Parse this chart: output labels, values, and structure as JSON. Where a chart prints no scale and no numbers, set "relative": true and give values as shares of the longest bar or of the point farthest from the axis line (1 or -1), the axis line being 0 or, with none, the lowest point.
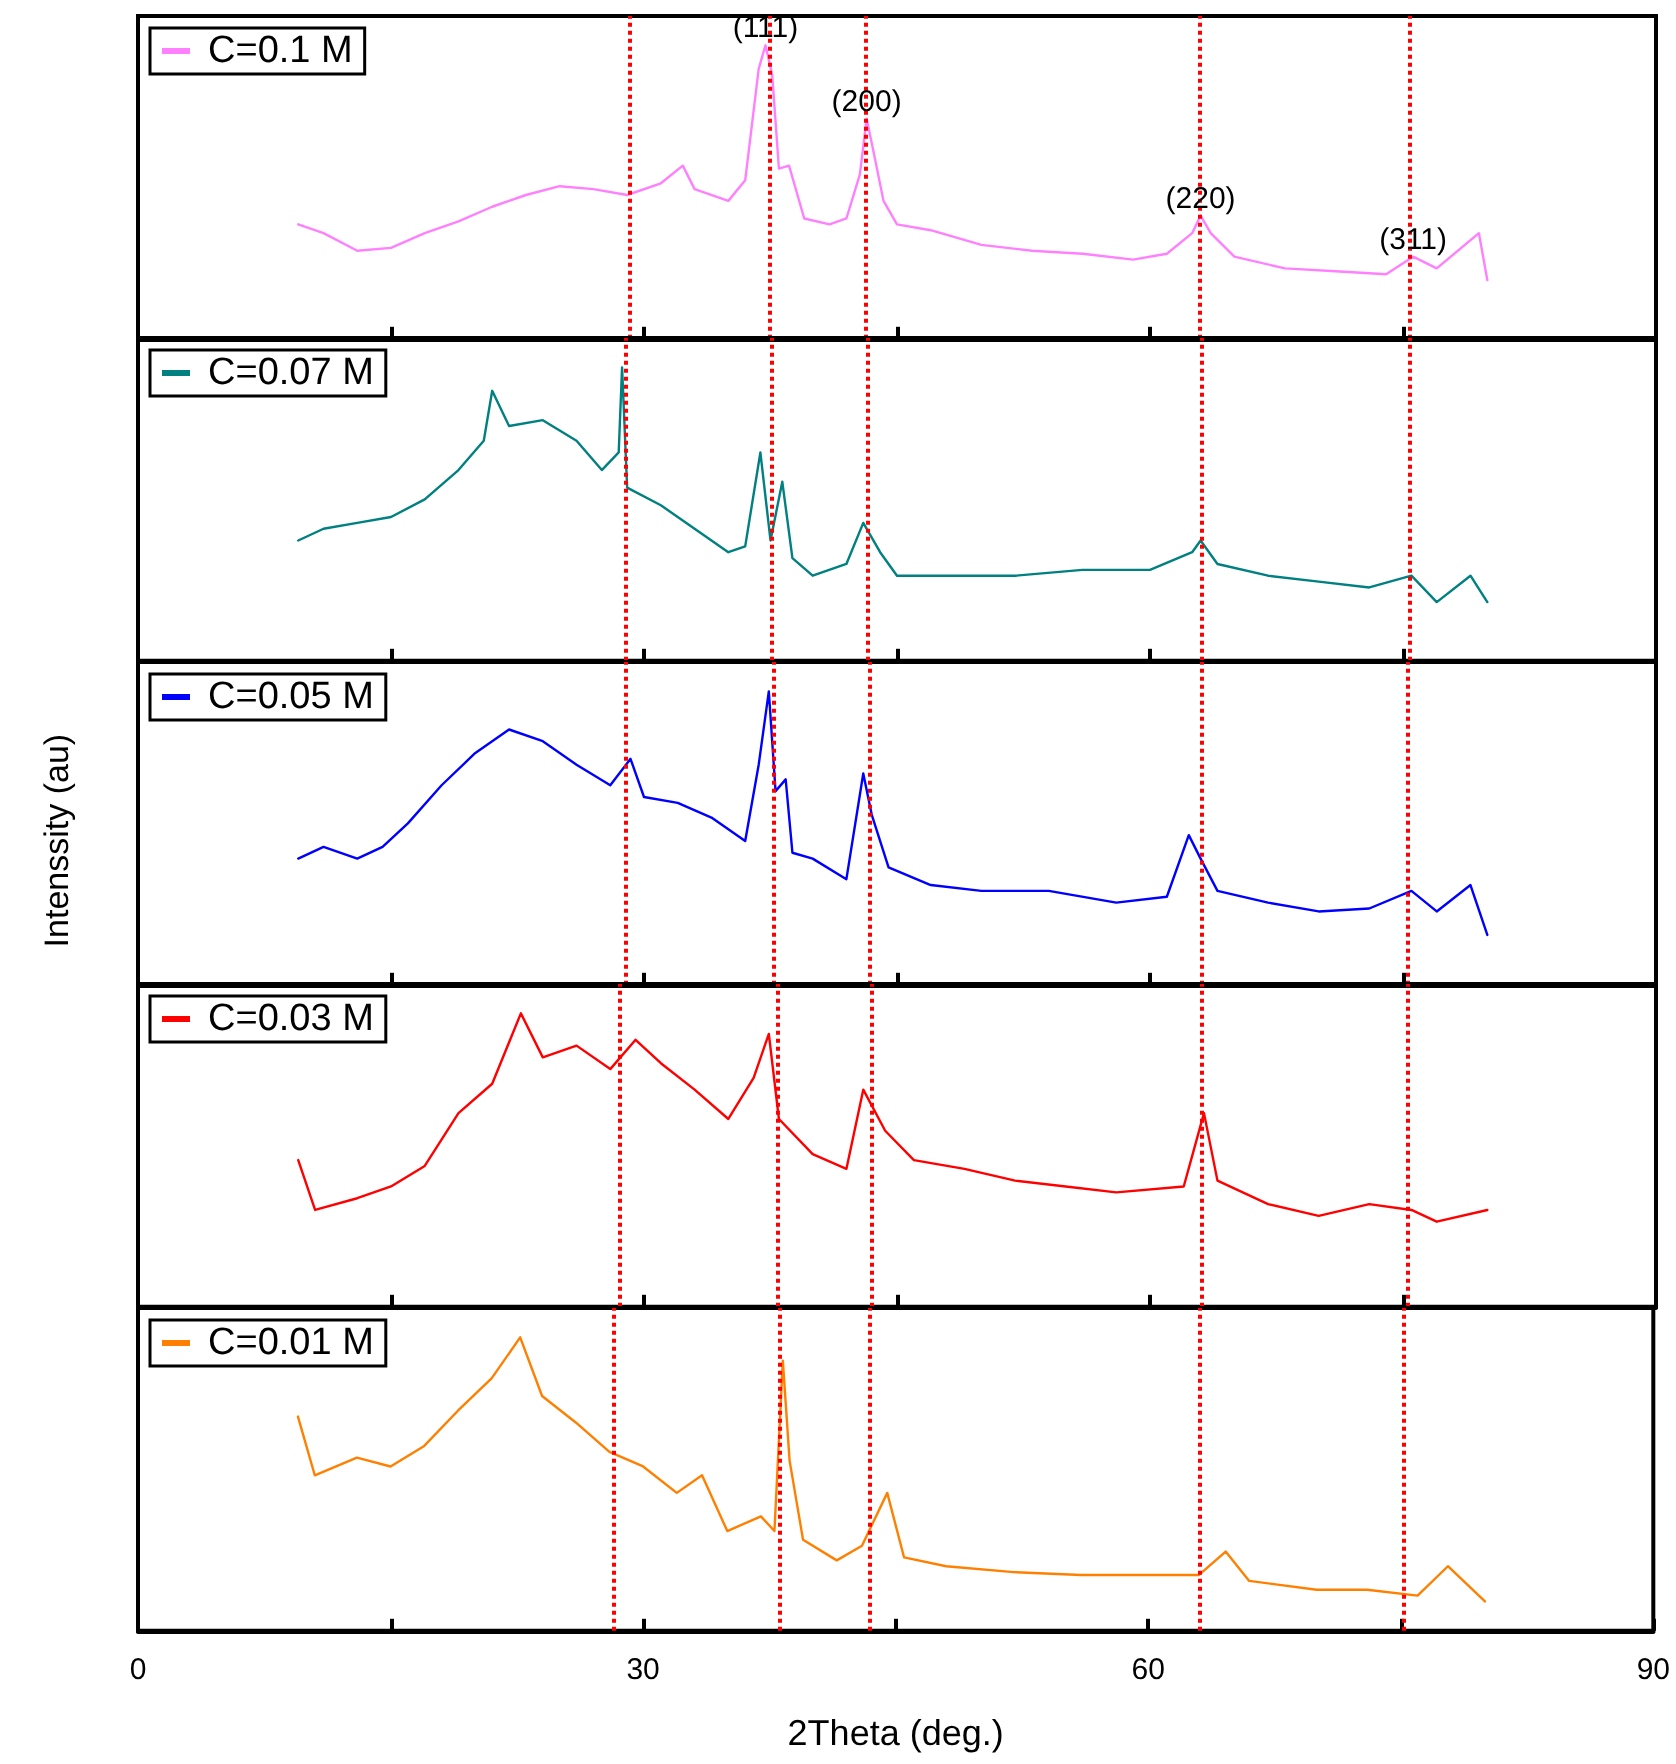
{
  "chart_data": [
    {
      "type": "line",
      "relative": true,
      "xlim": [
        0,
        90
      ],
      "xticks": [
        0,
        {
          "value": 15,
          "label": null
        },
        30,
        {
          "value": 45,
          "label": null
        },
        60,
        {
          "value": 75,
          "label": null
        },
        90
      ],
      "tick_labels": false,
      "legend": "top left",
      "grid": false,
      "marker": "none",
      "line_style": "solid",
      "x": [
        9.5,
        11,
        13,
        15,
        17,
        19,
        21,
        23,
        25,
        27,
        29,
        31,
        32.3,
        33,
        35,
        36,
        36.8,
        37.2,
        37.6,
        38,
        38.6,
        39.5,
        41,
        42,
        42.8,
        43.2,
        43.6,
        44.2,
        45,
        47,
        50,
        53,
        56,
        59,
        61,
        62.5,
        63,
        63.6,
        65,
        68,
        71,
        74,
        75.6,
        77,
        79.5,
        80
      ],
      "series": [
        {
          "name": "C=0.1 M",
          "color": "#ff80ff",
          "values": [
            0.39,
            0.36,
            0.3,
            0.31,
            0.36,
            0.4,
            0.45,
            0.49,
            0.52,
            0.51,
            0.49,
            0.53,
            0.59,
            0.51,
            0.47,
            0.54,
            0.92,
            1.0,
            0.9,
            0.58,
            0.59,
            0.41,
            0.39,
            0.41,
            0.56,
            0.75,
            0.64,
            0.47,
            0.39,
            0.37,
            0.32,
            0.3,
            0.29,
            0.27,
            0.29,
            0.36,
            0.42,
            0.36,
            0.28,
            0.24,
            0.23,
            0.22,
            0.28,
            0.24,
            0.36,
            0.2
          ]
        }
      ],
      "annotations": [
        {
          "text": "(111)",
          "x": 37.2,
          "y": 1.0
        },
        {
          "text": "(200)",
          "x": 43.2,
          "y": 0.75
        },
        {
          "text": "(220)",
          "x": 63,
          "y": 0.42
        },
        {
          "text": "(311)",
          "x": 75.6,
          "y": 0.28
        }
      ],
      "ref_lines": [
        {
          "axis": "x",
          "value": 29.1,
          "color": "#ff0000",
          "line_style": "dotted"
        },
        {
          "axis": "x",
          "value": 37.4,
          "color": "#ff0000",
          "line_style": "dotted"
        },
        {
          "axis": "x",
          "value": 43.1,
          "color": "#ff0000",
          "line_style": "dotted"
        },
        {
          "axis": "x",
          "value": 62.9,
          "color": "#ff0000",
          "line_style": "dotted"
        },
        {
          "axis": "x",
          "value": 75.4,
          "color": "#ff0000",
          "line_style": "dotted"
        }
      ]
    },
    {
      "type": "line",
      "relative": true,
      "xlim": [
        0,
        90
      ],
      "xticks": [
        0,
        {
          "value": 15,
          "label": null
        },
        30,
        {
          "value": 45,
          "label": null
        },
        60,
        {
          "value": 75,
          "label": null
        },
        90
      ],
      "tick_labels": false,
      "legend": "top left",
      "grid": false,
      "marker": "none",
      "line_style": "solid",
      "x": [
        9.5,
        11,
        13,
        15,
        17,
        19,
        20.5,
        21,
        22,
        24,
        26,
        27.5,
        28.5,
        28.7,
        29,
        31,
        33,
        35,
        36,
        36.9,
        37.5,
        38.2,
        38.8,
        40,
        42,
        43,
        44,
        45,
        48,
        52,
        56,
        60,
        62.5,
        63,
        64,
        67,
        70,
        73,
        75.5,
        77,
        79,
        80
      ],
      "series": [
        {
          "name": "C=0.07 M",
          "color": "#008080",
          "values": [
            0.41,
            0.45,
            0.47,
            0.49,
            0.55,
            0.65,
            0.75,
            0.92,
            0.8,
            0.82,
            0.75,
            0.65,
            0.71,
            1.0,
            0.59,
            0.53,
            0.45,
            0.37,
            0.39,
            0.71,
            0.41,
            0.61,
            0.35,
            0.29,
            0.33,
            0.47,
            0.37,
            0.29,
            0.29,
            0.29,
            0.31,
            0.31,
            0.37,
            0.41,
            0.33,
            0.29,
            0.27,
            0.25,
            0.29,
            0.2,
            0.29,
            0.2
          ]
        }
      ],
      "ref_lines": [
        {
          "axis": "x",
          "value": 28.9,
          "color": "#ff0000",
          "line_style": "dotted"
        },
        {
          "axis": "x",
          "value": 37.6,
          "color": "#ff0000",
          "line_style": "dotted"
        },
        {
          "axis": "x",
          "value": 43.3,
          "color": "#ff0000",
          "line_style": "dotted"
        },
        {
          "axis": "x",
          "value": 63.0,
          "color": "#ff0000",
          "line_style": "dotted"
        },
        {
          "axis": "x",
          "value": 75.4,
          "color": "#ff0000",
          "line_style": "dotted"
        }
      ]
    },
    {
      "type": "line",
      "relative": true,
      "xlim": [
        0,
        90
      ],
      "xticks": [
        0,
        {
          "value": 15,
          "label": null
        },
        30,
        {
          "value": 45,
          "label": null
        },
        60,
        {
          "value": 75,
          "label": null
        },
        90
      ],
      "tick_labels": false,
      "legend": "top left",
      "grid": false,
      "marker": "none",
      "line_style": "solid",
      "ylabel": "Intenssity (au)",
      "x": [
        9.5,
        11,
        13,
        14.5,
        16,
        18,
        20,
        22,
        24,
        26,
        28,
        29.2,
        30,
        32,
        34,
        36,
        36.8,
        37.4,
        37.8,
        38.4,
        38.8,
        40,
        42,
        43,
        43.5,
        44.5,
        47,
        50,
        54,
        58,
        61,
        62.3,
        63,
        64,
        67,
        70,
        73,
        75.5,
        77,
        79,
        80
      ],
      "series": [
        {
          "name": "C=0.05 M",
          "color": "#0000ff",
          "values": [
            0.43,
            0.47,
            0.43,
            0.47,
            0.55,
            0.68,
            0.79,
            0.87,
            0.83,
            0.75,
            0.68,
            0.77,
            0.64,
            0.62,
            0.57,
            0.49,
            0.75,
            1.0,
            0.66,
            0.7,
            0.45,
            0.43,
            0.36,
            0.72,
            0.58,
            0.4,
            0.34,
            0.32,
            0.32,
            0.28,
            0.3,
            0.51,
            0.43,
            0.32,
            0.28,
            0.25,
            0.26,
            0.32,
            0.25,
            0.34,
            0.17
          ]
        }
      ],
      "ref_lines": [
        {
          "axis": "x",
          "value": 28.9,
          "color": "#ff0000",
          "line_style": "dotted"
        },
        {
          "axis": "x",
          "value": 37.7,
          "color": "#ff0000",
          "line_style": "dotted"
        },
        {
          "axis": "x",
          "value": 43.4,
          "color": "#ff0000",
          "line_style": "dotted"
        },
        {
          "axis": "x",
          "value": 63.0,
          "color": "#ff0000",
          "line_style": "dotted"
        },
        {
          "axis": "x",
          "value": 75.3,
          "color": "#ff0000",
          "line_style": "dotted"
        }
      ]
    },
    {
      "type": "line",
      "relative": true,
      "xlim": [
        0,
        90
      ],
      "xticks": [
        0,
        {
          "value": 15,
          "label": null
        },
        30,
        {
          "value": 45,
          "label": null
        },
        60,
        {
          "value": 75,
          "label": null
        },
        90
      ],
      "tick_labels": false,
      "legend": "top left",
      "grid": false,
      "marker": "none",
      "line_style": "solid",
      "x": [
        9.5,
        10.5,
        13,
        15,
        17,
        19,
        21,
        22.7,
        24,
        26,
        28,
        29.5,
        31,
        33,
        35,
        36.5,
        37.4,
        38,
        40,
        42,
        43,
        44.3,
        46,
        49,
        52,
        55,
        58,
        62,
        63.2,
        64,
        67,
        70,
        73,
        75.5,
        77,
        80
      ],
      "series": [
        {
          "name": "C=0.03 M",
          "color": "#ff0000",
          "values": [
            0.5,
            0.33,
            0.37,
            0.41,
            0.48,
            0.66,
            0.76,
            1.0,
            0.85,
            0.89,
            0.81,
            0.91,
            0.83,
            0.74,
            0.64,
            0.78,
            0.93,
            0.64,
            0.52,
            0.47,
            0.74,
            0.6,
            0.5,
            0.47,
            0.43,
            0.41,
            0.39,
            0.41,
            0.66,
            0.43,
            0.35,
            0.31,
            0.35,
            0.33,
            0.29,
            0.33
          ]
        }
      ],
      "ref_lines": [
        {
          "axis": "x",
          "value": 28.6,
          "color": "#ff0000",
          "line_style": "dotted"
        },
        {
          "axis": "x",
          "value": 37.9,
          "color": "#ff0000",
          "line_style": "dotted"
        },
        {
          "axis": "x",
          "value": 43.5,
          "color": "#ff0000",
          "line_style": "dotted"
        },
        {
          "axis": "x",
          "value": 63.0,
          "color": "#ff0000",
          "line_style": "dotted"
        },
        {
          "axis": "x",
          "value": 75.3,
          "color": "#ff0000",
          "line_style": "dotted"
        }
      ]
    },
    {
      "type": "line",
      "relative": true,
      "xlim": [
        0,
        90
      ],
      "xticks": [
        0,
        {
          "value": 15,
          "label": null
        },
        30,
        {
          "value": 45,
          "label": null
        },
        60,
        {
          "value": 75,
          "label": null
        },
        90
      ],
      "tick_labels": "x",
      "legend": "top left",
      "grid": false,
      "marker": "none",
      "line_style": "solid",
      "xlabel": "2Theta (deg.)",
      "x": [
        9.5,
        10.5,
        13,
        15,
        17,
        19,
        21,
        22.7,
        24,
        26,
        28,
        30,
        32,
        33.5,
        35,
        37,
        37.8,
        38.3,
        38.7,
        39.5,
        41.5,
        43,
        44.5,
        45.5,
        48,
        52,
        56,
        60,
        63,
        64.6,
        66,
        70,
        73,
        76,
        77.8,
        80
      ],
      "series": [
        {
          "name": "C=0.01 M",
          "color": "#ff8000",
          "values": [
            0.73,
            0.53,
            0.59,
            0.56,
            0.63,
            0.75,
            0.86,
            1.0,
            0.8,
            0.71,
            0.61,
            0.56,
            0.47,
            0.53,
            0.34,
            0.39,
            0.34,
            0.92,
            0.58,
            0.31,
            0.24,
            0.29,
            0.47,
            0.25,
            0.22,
            0.2,
            0.19,
            0.19,
            0.19,
            0.27,
            0.17,
            0.14,
            0.14,
            0.12,
            0.22,
            0.1
          ]
        }
      ],
      "ref_lines": [
        {
          "axis": "x",
          "value": 28.2,
          "color": "#ff0000",
          "line_style": "dotted"
        },
        {
          "axis": "x",
          "value": 38.1,
          "color": "#ff0000",
          "line_style": "dotted"
        },
        {
          "axis": "x",
          "value": 43.5,
          "color": "#ff0000",
          "line_style": "dotted"
        },
        {
          "axis": "x",
          "value": 63.0,
          "color": "#ff0000",
          "line_style": "dotted"
        },
        {
          "axis": "x",
          "value": 75.2,
          "color": "#ff0000",
          "line_style": "dotted"
        }
      ]
    }
  ]
}
